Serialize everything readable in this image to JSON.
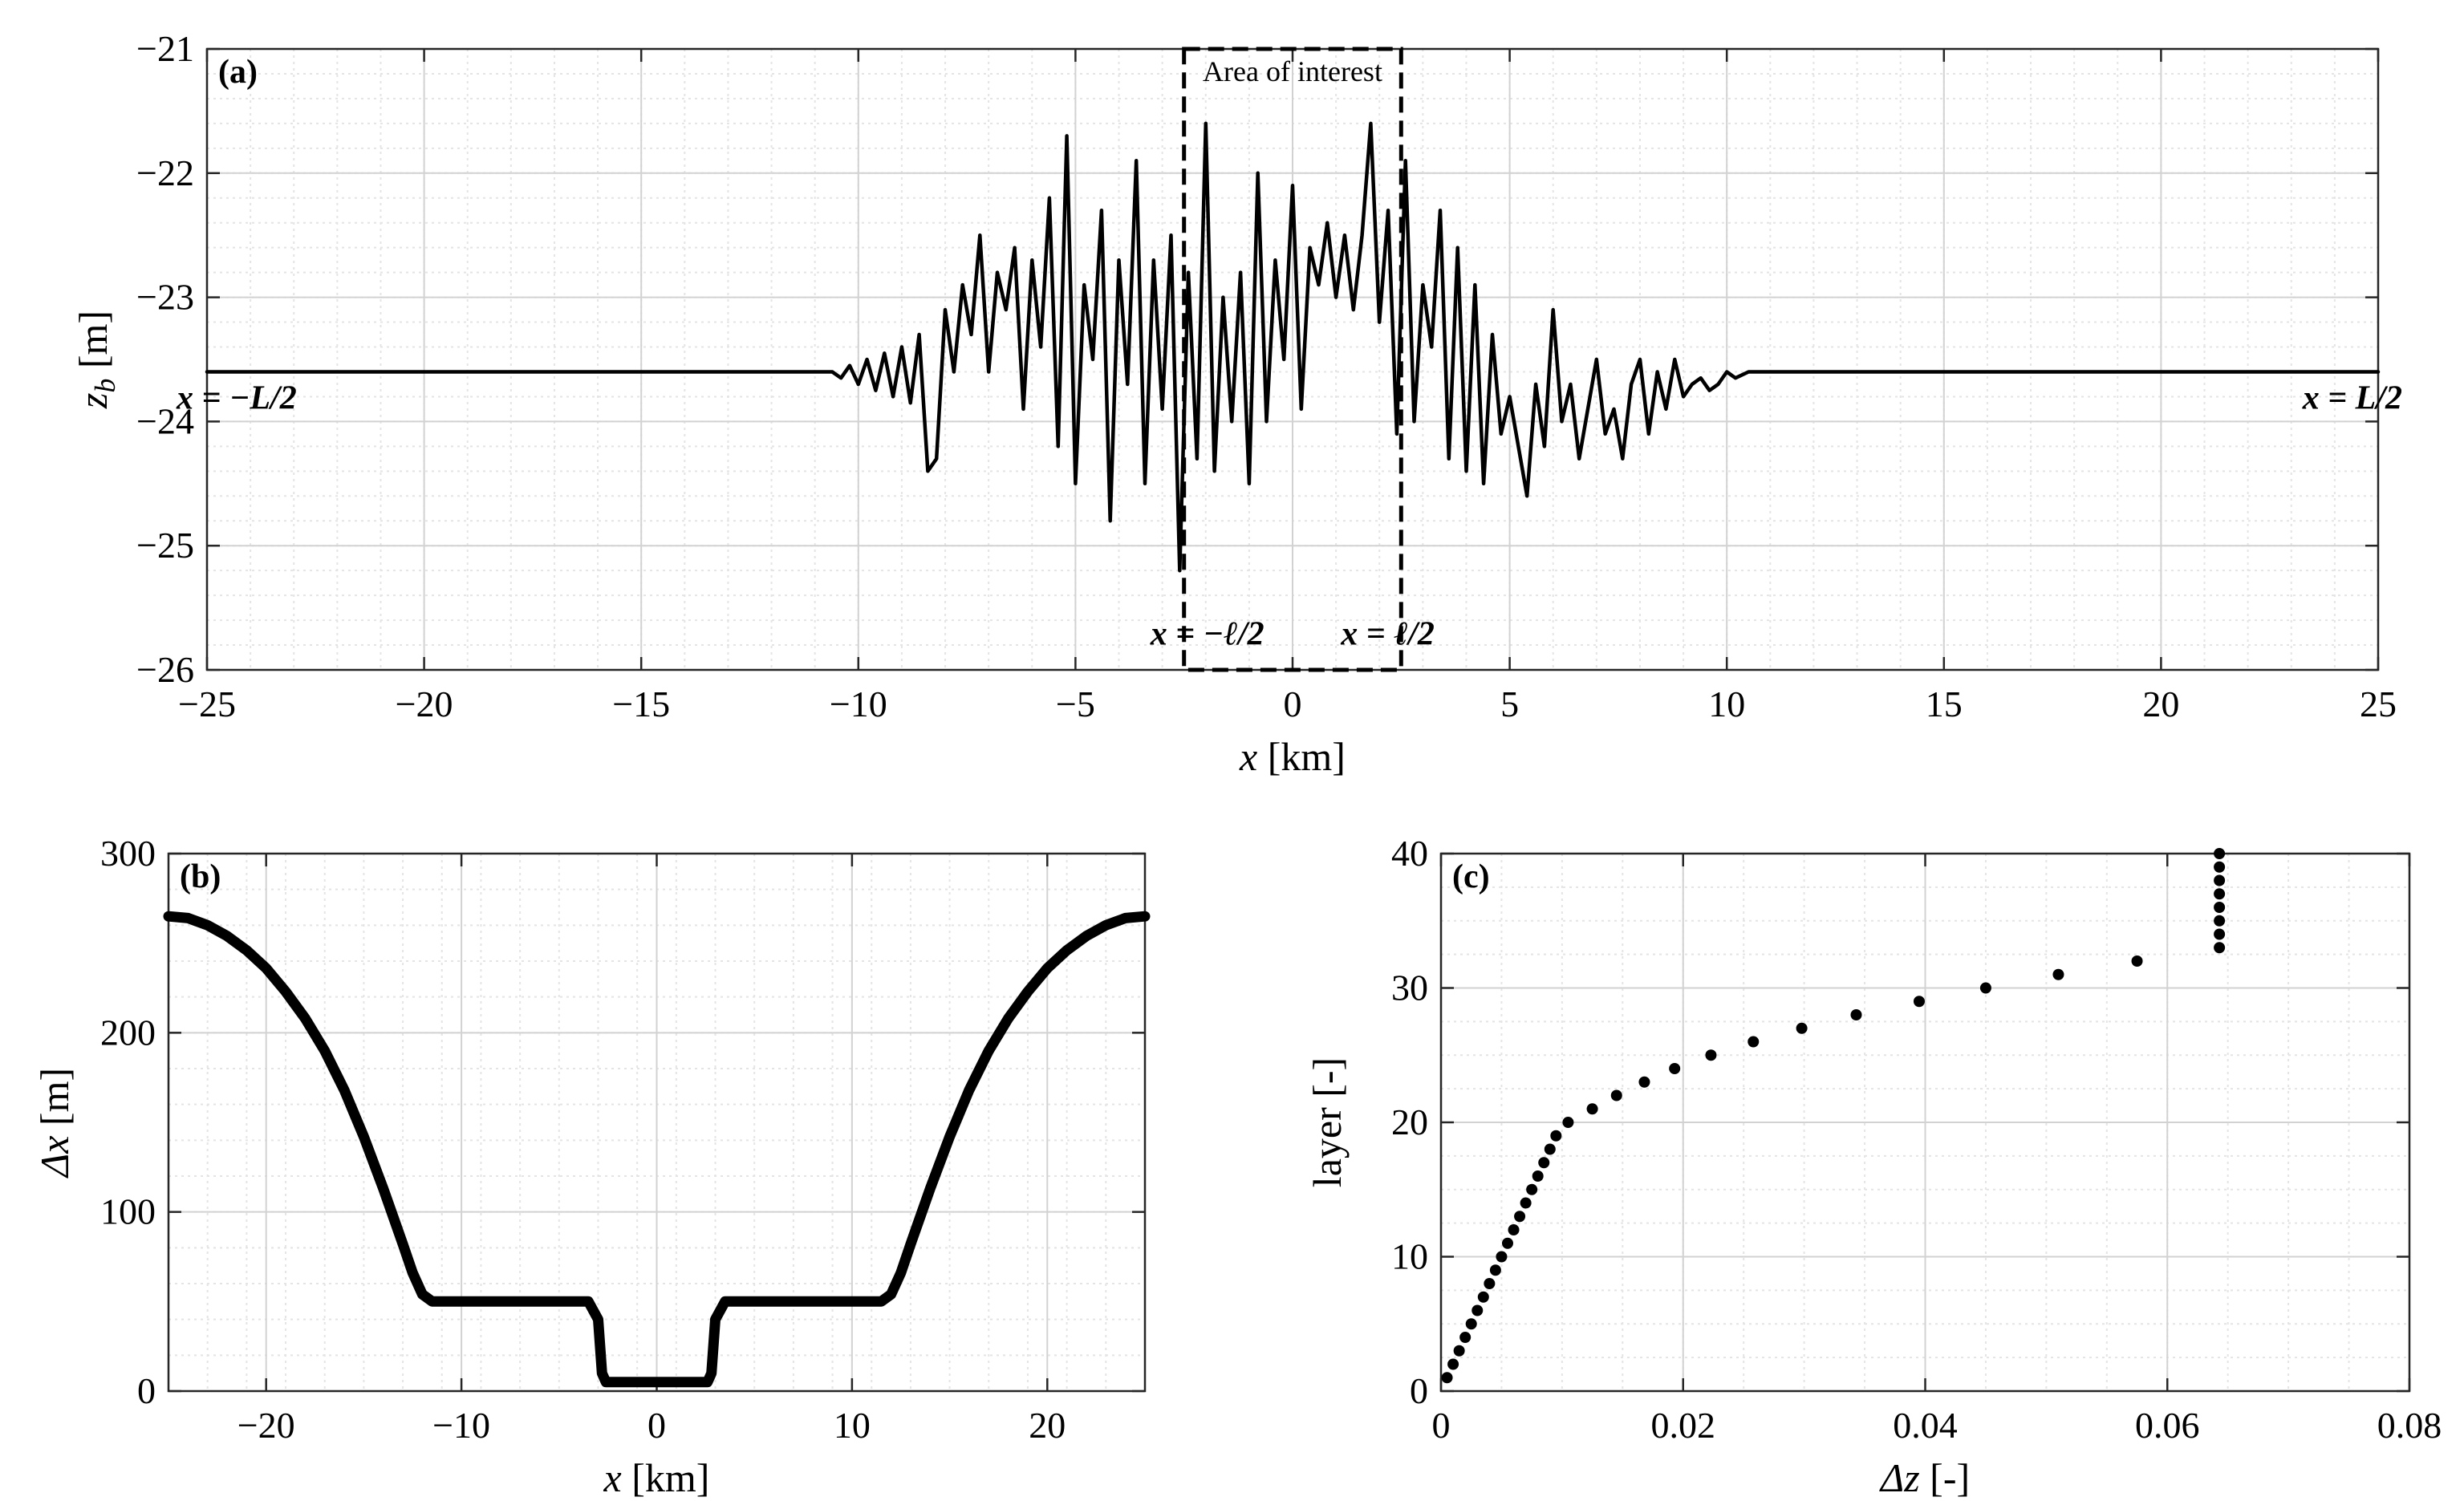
{
  "chart_data": [
    {
      "panel": "(a)",
      "type": "line",
      "xlabel": "x  [km]",
      "ylabel": "z_b  [m]",
      "xlim": [
        -25,
        25
      ],
      "ylim": [
        -26,
        -21
      ],
      "xticks": [
        -25,
        -20,
        -15,
        -10,
        -5,
        0,
        5,
        10,
        15,
        20,
        25
      ],
      "yticks": [
        -26,
        -25,
        -24,
        -23,
        -22,
        -21
      ],
      "grid": true,
      "x": [
        -25,
        -11,
        -10.6,
        -10.4,
        -10.2,
        -10,
        -9.8,
        -9.6,
        -9.4,
        -9.2,
        -9,
        -8.8,
        -8.6,
        -8.4,
        -8.2,
        -8,
        -7.8,
        -7.6,
        -7.4,
        -7.2,
        -7,
        -6.8,
        -6.6,
        -6.4,
        -6.2,
        -6,
        -5.8,
        -5.6,
        -5.4,
        -5.2,
        -5,
        -4.8,
        -4.6,
        -4.4,
        -4.2,
        -4,
        -3.8,
        -3.6,
        -3.4,
        -3.2,
        -3,
        -2.8,
        -2.6,
        -2.4,
        -2.2,
        -2,
        -1.8,
        -1.6,
        -1.4,
        -1.2,
        -1,
        -0.8,
        -0.6,
        -0.4,
        -0.2,
        0,
        0.2,
        0.4,
        0.6,
        0.8,
        1,
        1.2,
        1.4,
        1.6,
        1.8,
        2,
        2.2,
        2.4,
        2.6,
        2.8,
        3,
        3.2,
        3.4,
        3.6,
        3.8,
        4,
        4.2,
        4.4,
        4.6,
        4.8,
        5,
        5.2,
        5.4,
        5.6,
        5.8,
        6,
        6.2,
        6.4,
        6.6,
        6.8,
        7,
        7.2,
        7.4,
        7.6,
        7.8,
        8,
        8.2,
        8.4,
        8.6,
        8.8,
        9,
        9.2,
        9.4,
        9.6,
        9.8,
        10,
        10.2,
        10.5,
        25
      ],
      "y": [
        -23.6,
        -23.6,
        -23.6,
        -23.65,
        -23.55,
        -23.7,
        -23.5,
        -23.75,
        -23.45,
        -23.8,
        -23.4,
        -23.85,
        -23.3,
        -24.4,
        -24.3,
        -23.1,
        -23.6,
        -22.9,
        -23.3,
        -22.5,
        -23.6,
        -22.8,
        -23.1,
        -22.6,
        -23.9,
        -22.7,
        -23.4,
        -22.2,
        -24.2,
        -21.7,
        -24.5,
        -22.9,
        -23.5,
        -22.3,
        -24.8,
        -22.7,
        -23.7,
        -21.9,
        -24.5,
        -22.7,
        -23.9,
        -22.5,
        -25.2,
        -22.8,
        -24.3,
        -21.6,
        -24.4,
        -23,
        -24,
        -22.8,
        -24.5,
        -22,
        -24,
        -22.7,
        -23.5,
        -22.1,
        -23.9,
        -22.6,
        -22.9,
        -22.4,
        -23,
        -22.5,
        -23.1,
        -22.5,
        -21.6,
        -23.2,
        -22.3,
        -24.1,
        -21.9,
        -24,
        -22.9,
        -23.4,
        -22.3,
        -24.3,
        -22.6,
        -24.4,
        -22.9,
        -24.5,
        -23.3,
        -24.1,
        -23.8,
        -24.2,
        -24.6,
        -23.7,
        -24.2,
        -23.1,
        -24,
        -23.7,
        -24.3,
        -23.9,
        -23.5,
        -24.1,
        -23.9,
        -24.3,
        -23.7,
        -23.5,
        -24.1,
        -23.6,
        -23.9,
        -23.5,
        -23.8,
        -23.7,
        -23.65,
        -23.75,
        -23.7,
        -23.6,
        -23.65,
        -23.6,
        -23.6
      ],
      "box": {
        "x": [
          -2.5,
          2.5
        ],
        "y": [
          -26,
          -21
        ],
        "label": "Area of interest"
      },
      "annotations": [
        {
          "text": "x = −L/2",
          "x": -25,
          "y": -23.8
        },
        {
          "text": "x = L/2",
          "x": 25,
          "y": -23.8
        },
        {
          "text": "x = −ℓ/2",
          "x": -2.5,
          "y": -25.7
        },
        {
          "text": "x = ℓ/2",
          "x": 2.5,
          "y": -25.7
        }
      ]
    },
    {
      "panel": "(b)",
      "type": "line",
      "xlabel": "x  [km]",
      "ylabel": "Δx  [m]",
      "xlim": [
        -25,
        25
      ],
      "ylim": [
        0,
        300
      ],
      "xticks": [
        -20,
        -10,
        0,
        10,
        20
      ],
      "yticks": [
        0,
        100,
        200,
        300
      ],
      "grid": true,
      "x": [
        -25,
        -24,
        -23,
        -22,
        -21,
        -20,
        -19,
        -18,
        -17,
        -16,
        -15,
        -14,
        -13,
        -12.5,
        -12,
        -11.5,
        -3.5,
        -3,
        -2.8,
        -2.6,
        2.6,
        2.8,
        3,
        3.5,
        11.5,
        12,
        12.5,
        13,
        14,
        15,
        16,
        17,
        18,
        19,
        20,
        21,
        22,
        23,
        24,
        25
      ],
      "y": [
        265,
        264,
        260,
        254,
        246,
        236,
        223,
        208,
        190,
        168,
        142,
        113,
        82,
        66,
        54,
        50,
        50,
        40,
        10,
        5,
        5,
        10,
        40,
        50,
        50,
        54,
        66,
        82,
        113,
        142,
        168,
        190,
        208,
        223,
        236,
        246,
        254,
        260,
        264,
        265
      ]
    },
    {
      "panel": "(c)",
      "type": "scatter",
      "xlabel": "Δz  [-]",
      "ylabel": "layer  [-]",
      "xlim": [
        0,
        0.08
      ],
      "ylim": [
        0,
        40
      ],
      "xticks": [
        0,
        0.02,
        0.04,
        0.06,
        0.08
      ],
      "yticks": [
        0,
        10,
        20,
        30,
        40
      ],
      "grid": true,
      "x": [
        0.0005,
        0.001,
        0.0015,
        0.002,
        0.0025,
        0.003,
        0.0035,
        0.004,
        0.0045,
        0.005,
        0.0055,
        0.006,
        0.0065,
        0.007,
        0.0075,
        0.008,
        0.0085,
        0.009,
        0.0095,
        0.0105,
        0.0125,
        0.0145,
        0.0168,
        0.0193,
        0.0223,
        0.0258,
        0.0298,
        0.0343,
        0.0395,
        0.045,
        0.051,
        0.0575,
        0.0643,
        0.0643,
        0.0643,
        0.0643,
        0.0643,
        0.0643,
        0.0643,
        0.0643
      ],
      "y": [
        1,
        2,
        3,
        4,
        5,
        6,
        7,
        8,
        9,
        10,
        11,
        12,
        13,
        14,
        15,
        16,
        17,
        18,
        19,
        20,
        21,
        22,
        23,
        24,
        25,
        26,
        27,
        28,
        29,
        30,
        31,
        32,
        33,
        34,
        35,
        36,
        37,
        38,
        39,
        40
      ]
    }
  ]
}
